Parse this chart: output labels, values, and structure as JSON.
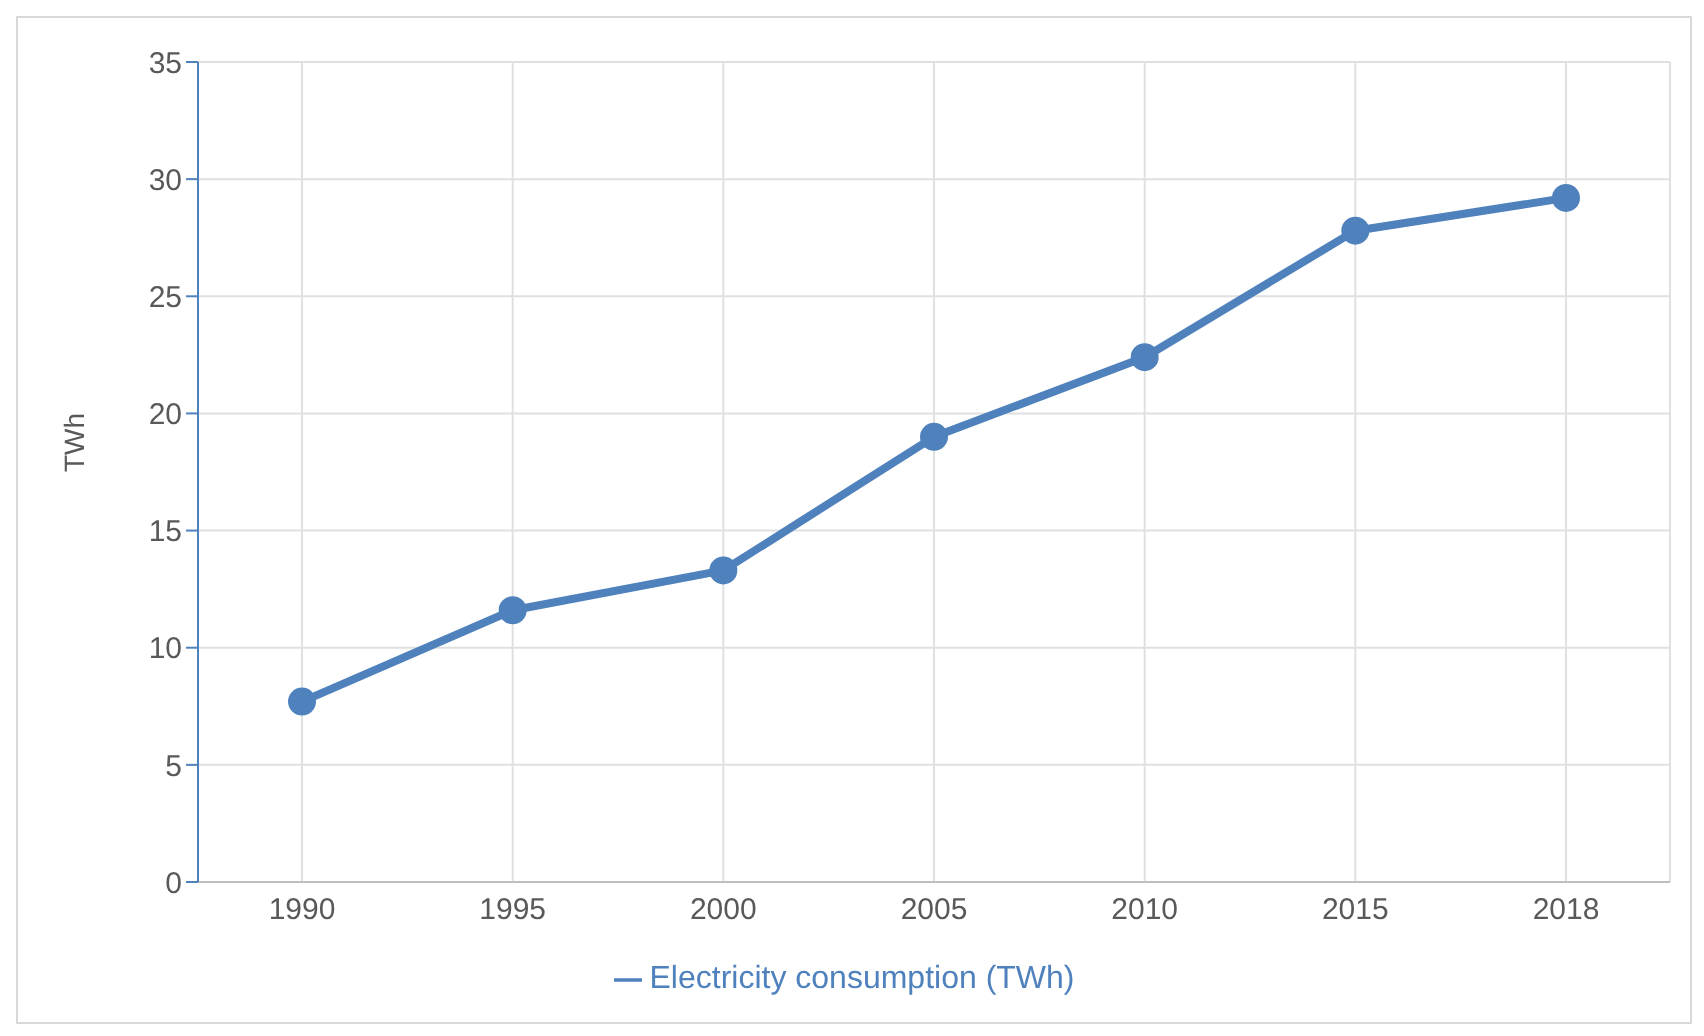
{
  "chart_data": {
    "type": "line",
    "ylabel": "TWh",
    "categories": [
      "1990",
      "1995",
      "2000",
      "2005",
      "2010",
      "2015",
      "2018"
    ],
    "series": [
      {
        "name": "Electricity consumption (TWh)",
        "color": "#4f81bd",
        "values": [
          7.7,
          11.6,
          13.3,
          19.0,
          22.4,
          27.8,
          29.2
        ]
      }
    ],
    "ylim": [
      0,
      35
    ],
    "yticks": [
      0,
      5,
      10,
      15,
      20,
      25,
      30,
      35
    ],
    "grid": true,
    "legend": "bottom",
    "marker": "circle",
    "line_style": "solid"
  }
}
